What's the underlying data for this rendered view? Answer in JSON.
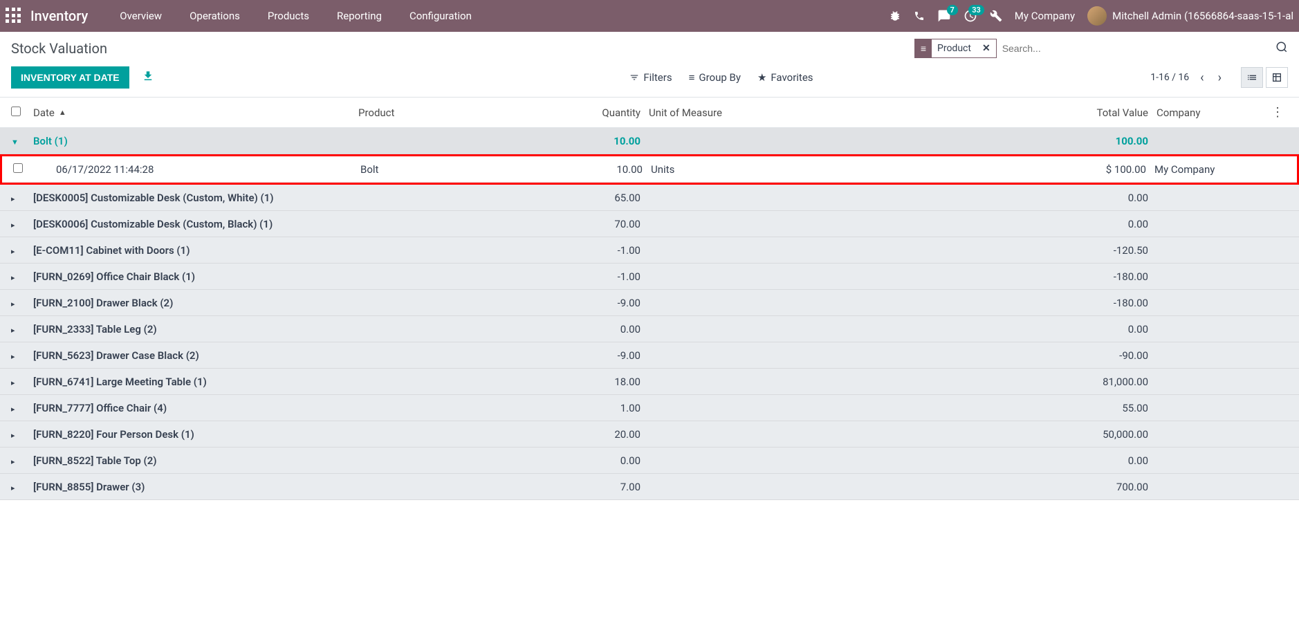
{
  "navbar": {
    "app_name": "Inventory",
    "menus": [
      "Overview",
      "Operations",
      "Products",
      "Reporting",
      "Configuration"
    ],
    "chat_badge": "7",
    "clock_badge": "33",
    "company": "My Company",
    "user": "Mitchell Admin (16566864-saas-15-1-al"
  },
  "page": {
    "title": "Stock Valuation",
    "button_label": "INVENTORY AT DATE",
    "facet_label": "Product",
    "search_placeholder": "Search...",
    "filters_label": "Filters",
    "groupby_label": "Group By",
    "favorites_label": "Favorites",
    "pager": "1-16 / 16"
  },
  "columns": {
    "date": "Date",
    "product": "Product",
    "quantity": "Quantity",
    "uom": "Unit of Measure",
    "value": "Total Value",
    "company": "Company"
  },
  "expanded_group": {
    "label": "Bolt (1)",
    "qty": "10.00",
    "value": "100.00"
  },
  "expanded_row": {
    "date": "06/17/2022 11:44:28",
    "product": "Bolt",
    "qty": "10.00",
    "uom": "Units",
    "value": "$ 100.00",
    "company": "My Company"
  },
  "groups": [
    {
      "label": "[DESK0005] Customizable Desk (Custom, White) (1)",
      "qty": "65.00",
      "value": "0.00"
    },
    {
      "label": "[DESK0006] Customizable Desk (Custom, Black) (1)",
      "qty": "70.00",
      "value": "0.00"
    },
    {
      "label": "[E-COM11] Cabinet with Doors (1)",
      "qty": "-1.00",
      "value": "-120.50"
    },
    {
      "label": "[FURN_0269] Office Chair Black (1)",
      "qty": "-1.00",
      "value": "-180.00"
    },
    {
      "label": "[FURN_2100] Drawer Black (2)",
      "qty": "-9.00",
      "value": "-180.00"
    },
    {
      "label": "[FURN_2333] Table Leg (2)",
      "qty": "0.00",
      "value": "0.00"
    },
    {
      "label": "[FURN_5623] Drawer Case Black (2)",
      "qty": "-9.00",
      "value": "-90.00"
    },
    {
      "label": "[FURN_6741] Large Meeting Table (1)",
      "qty": "18.00",
      "value": "81,000.00"
    },
    {
      "label": "[FURN_7777] Office Chair (4)",
      "qty": "1.00",
      "value": "55.00"
    },
    {
      "label": "[FURN_8220] Four Person Desk (1)",
      "qty": "20.00",
      "value": "50,000.00"
    },
    {
      "label": "[FURN_8522] Table Top (2)",
      "qty": "0.00",
      "value": "0.00"
    },
    {
      "label": "[FURN_8855] Drawer (3)",
      "qty": "7.00",
      "value": "700.00"
    }
  ]
}
